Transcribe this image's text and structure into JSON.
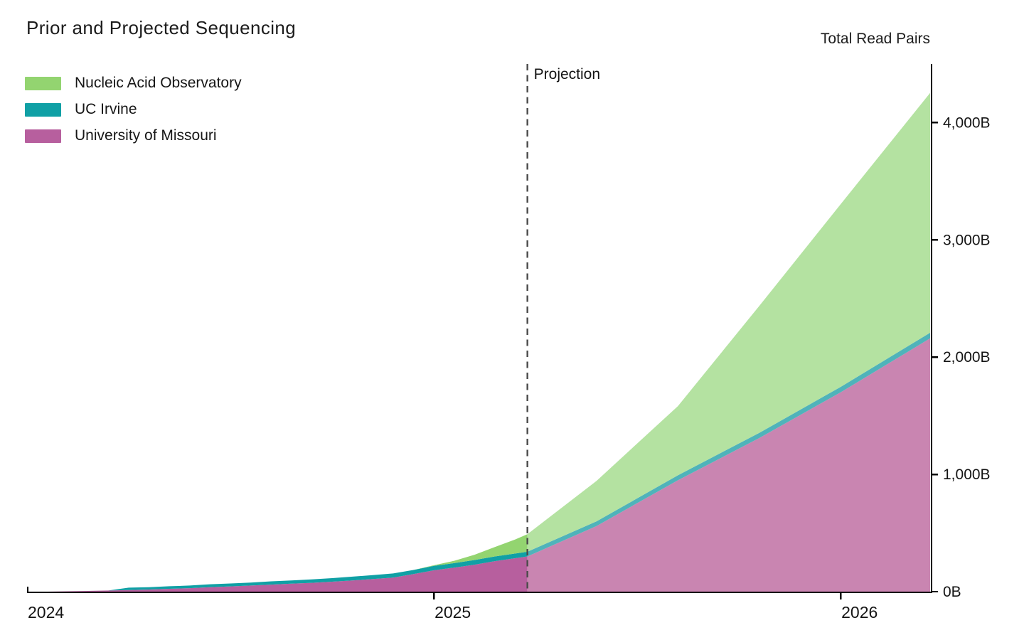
{
  "page": {
    "background": "#ffffff"
  },
  "title": "Prior and Projected Sequencing",
  "y_axis_title": "Total Read Pairs",
  "legend": {
    "position": "top-left",
    "items": [
      {
        "label": "Nucleic Acid Observatory",
        "color": "#93d470"
      },
      {
        "label": "UC Irvine",
        "color": "#10a0a5"
      },
      {
        "label": "University of Missouri",
        "color": "#b75f9e"
      }
    ]
  },
  "chart_data": {
    "type": "area",
    "stacked": true,
    "title": "Prior and Projected Sequencing",
    "xlabel": "",
    "ylabel": "Total Read Pairs",
    "unit": "billions of read pairs",
    "grid": false,
    "legend_position": "top-left",
    "xlim": [
      2024.0,
      2026.22
    ],
    "ylim": [
      0,
      4500
    ],
    "projection_start": 2025.23,
    "projection_label": "Projection",
    "x_ticks": [
      {
        "value": 2024,
        "label": "2024"
      },
      {
        "value": 2025,
        "label": "2025"
      },
      {
        "value": 2026,
        "label": "2026"
      }
    ],
    "y_ticks": [
      {
        "value": 0,
        "label": "0B"
      },
      {
        "value": 1000,
        "label": "1,000B"
      },
      {
        "value": 2000,
        "label": "2,000B"
      },
      {
        "value": 3000,
        "label": "3,000B"
      },
      {
        "value": 4000,
        "label": "4,000B"
      }
    ],
    "x": [
      2024.0,
      2024.05,
      2024.1,
      2024.15,
      2024.2,
      2024.25,
      2024.3,
      2024.35,
      2024.4,
      2024.45,
      2024.5,
      2024.55,
      2024.6,
      2024.65,
      2024.7,
      2024.75,
      2024.8,
      2024.85,
      2024.9,
      2024.95,
      2025.0,
      2025.05,
      2025.1,
      2025.15,
      2025.2,
      2025.23,
      2025.4,
      2025.6,
      2025.8,
      2026.0,
      2026.22
    ],
    "series": [
      {
        "name": "University of Missouri",
        "color": "#b75f9e",
        "projection_color": "#c985b1",
        "values": [
          0,
          0,
          3,
          6,
          10,
          14,
          18,
          24,
          30,
          38,
          45,
          52,
          60,
          68,
          75,
          85,
          95,
          108,
          120,
          150,
          182,
          205,
          230,
          260,
          285,
          300,
          560,
          950,
          1310,
          1700,
          2160
        ]
      },
      {
        "name": "UC Irvine",
        "color": "#10a0a5",
        "projection_color": "#4fb3ba",
        "values": [
          0,
          0,
          0,
          0,
          0,
          20,
          20,
          22,
          22,
          25,
          25,
          25,
          28,
          28,
          30,
          30,
          33,
          33,
          35,
          35,
          38,
          38,
          40,
          40,
          40,
          40,
          40,
          42,
          44,
          46,
          48
        ]
      },
      {
        "name": "Nucleic Acid Observatory",
        "color": "#93d470",
        "projection_color": "#b4e2a1",
        "values": [
          0,
          0,
          0,
          0,
          0,
          0,
          0,
          0,
          0,
          0,
          0,
          0,
          0,
          0,
          0,
          0,
          0,
          0,
          0,
          0,
          5,
          20,
          45,
          80,
          120,
          150,
          345,
          590,
          1082,
          1558,
          2046
        ]
      }
    ]
  }
}
